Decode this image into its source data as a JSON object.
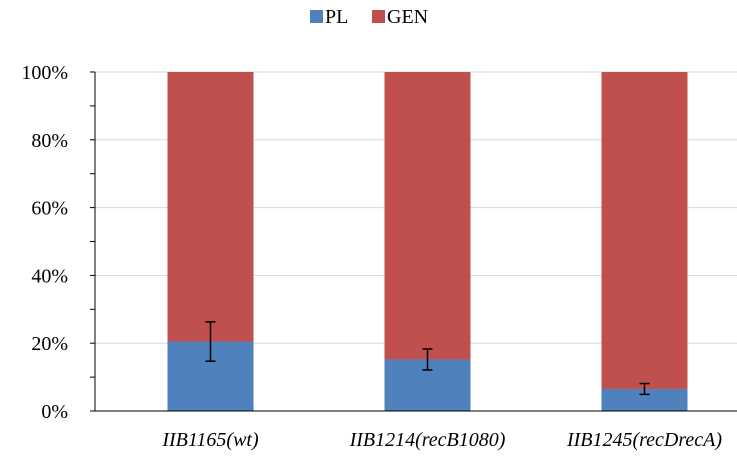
{
  "chart_data": {
    "type": "bar",
    "stacked": true,
    "normalized": true,
    "categories": [
      "IIB1165(wt)",
      "IIB1214(recB1080)",
      "IIB1245(recDrecA)"
    ],
    "series": [
      {
        "name": "PL",
        "values": [
          20.5,
          15.2,
          6.5
        ],
        "error": [
          5.8,
          3.1,
          1.6
        ],
        "color": "#4f81bd"
      },
      {
        "name": "GEN",
        "values": [
          79.5,
          84.8,
          93.5
        ],
        "color": "#c0504d"
      }
    ],
    "ylim": [
      0,
      100
    ],
    "yticks": [
      "0%",
      "20%",
      "40%",
      "60%",
      "80%",
      "100%"
    ],
    "ytick_values": [
      0,
      20,
      40,
      60,
      80,
      100
    ],
    "legend_position": "top-center",
    "grid": true,
    "grid_color": "#d9d9d9"
  }
}
